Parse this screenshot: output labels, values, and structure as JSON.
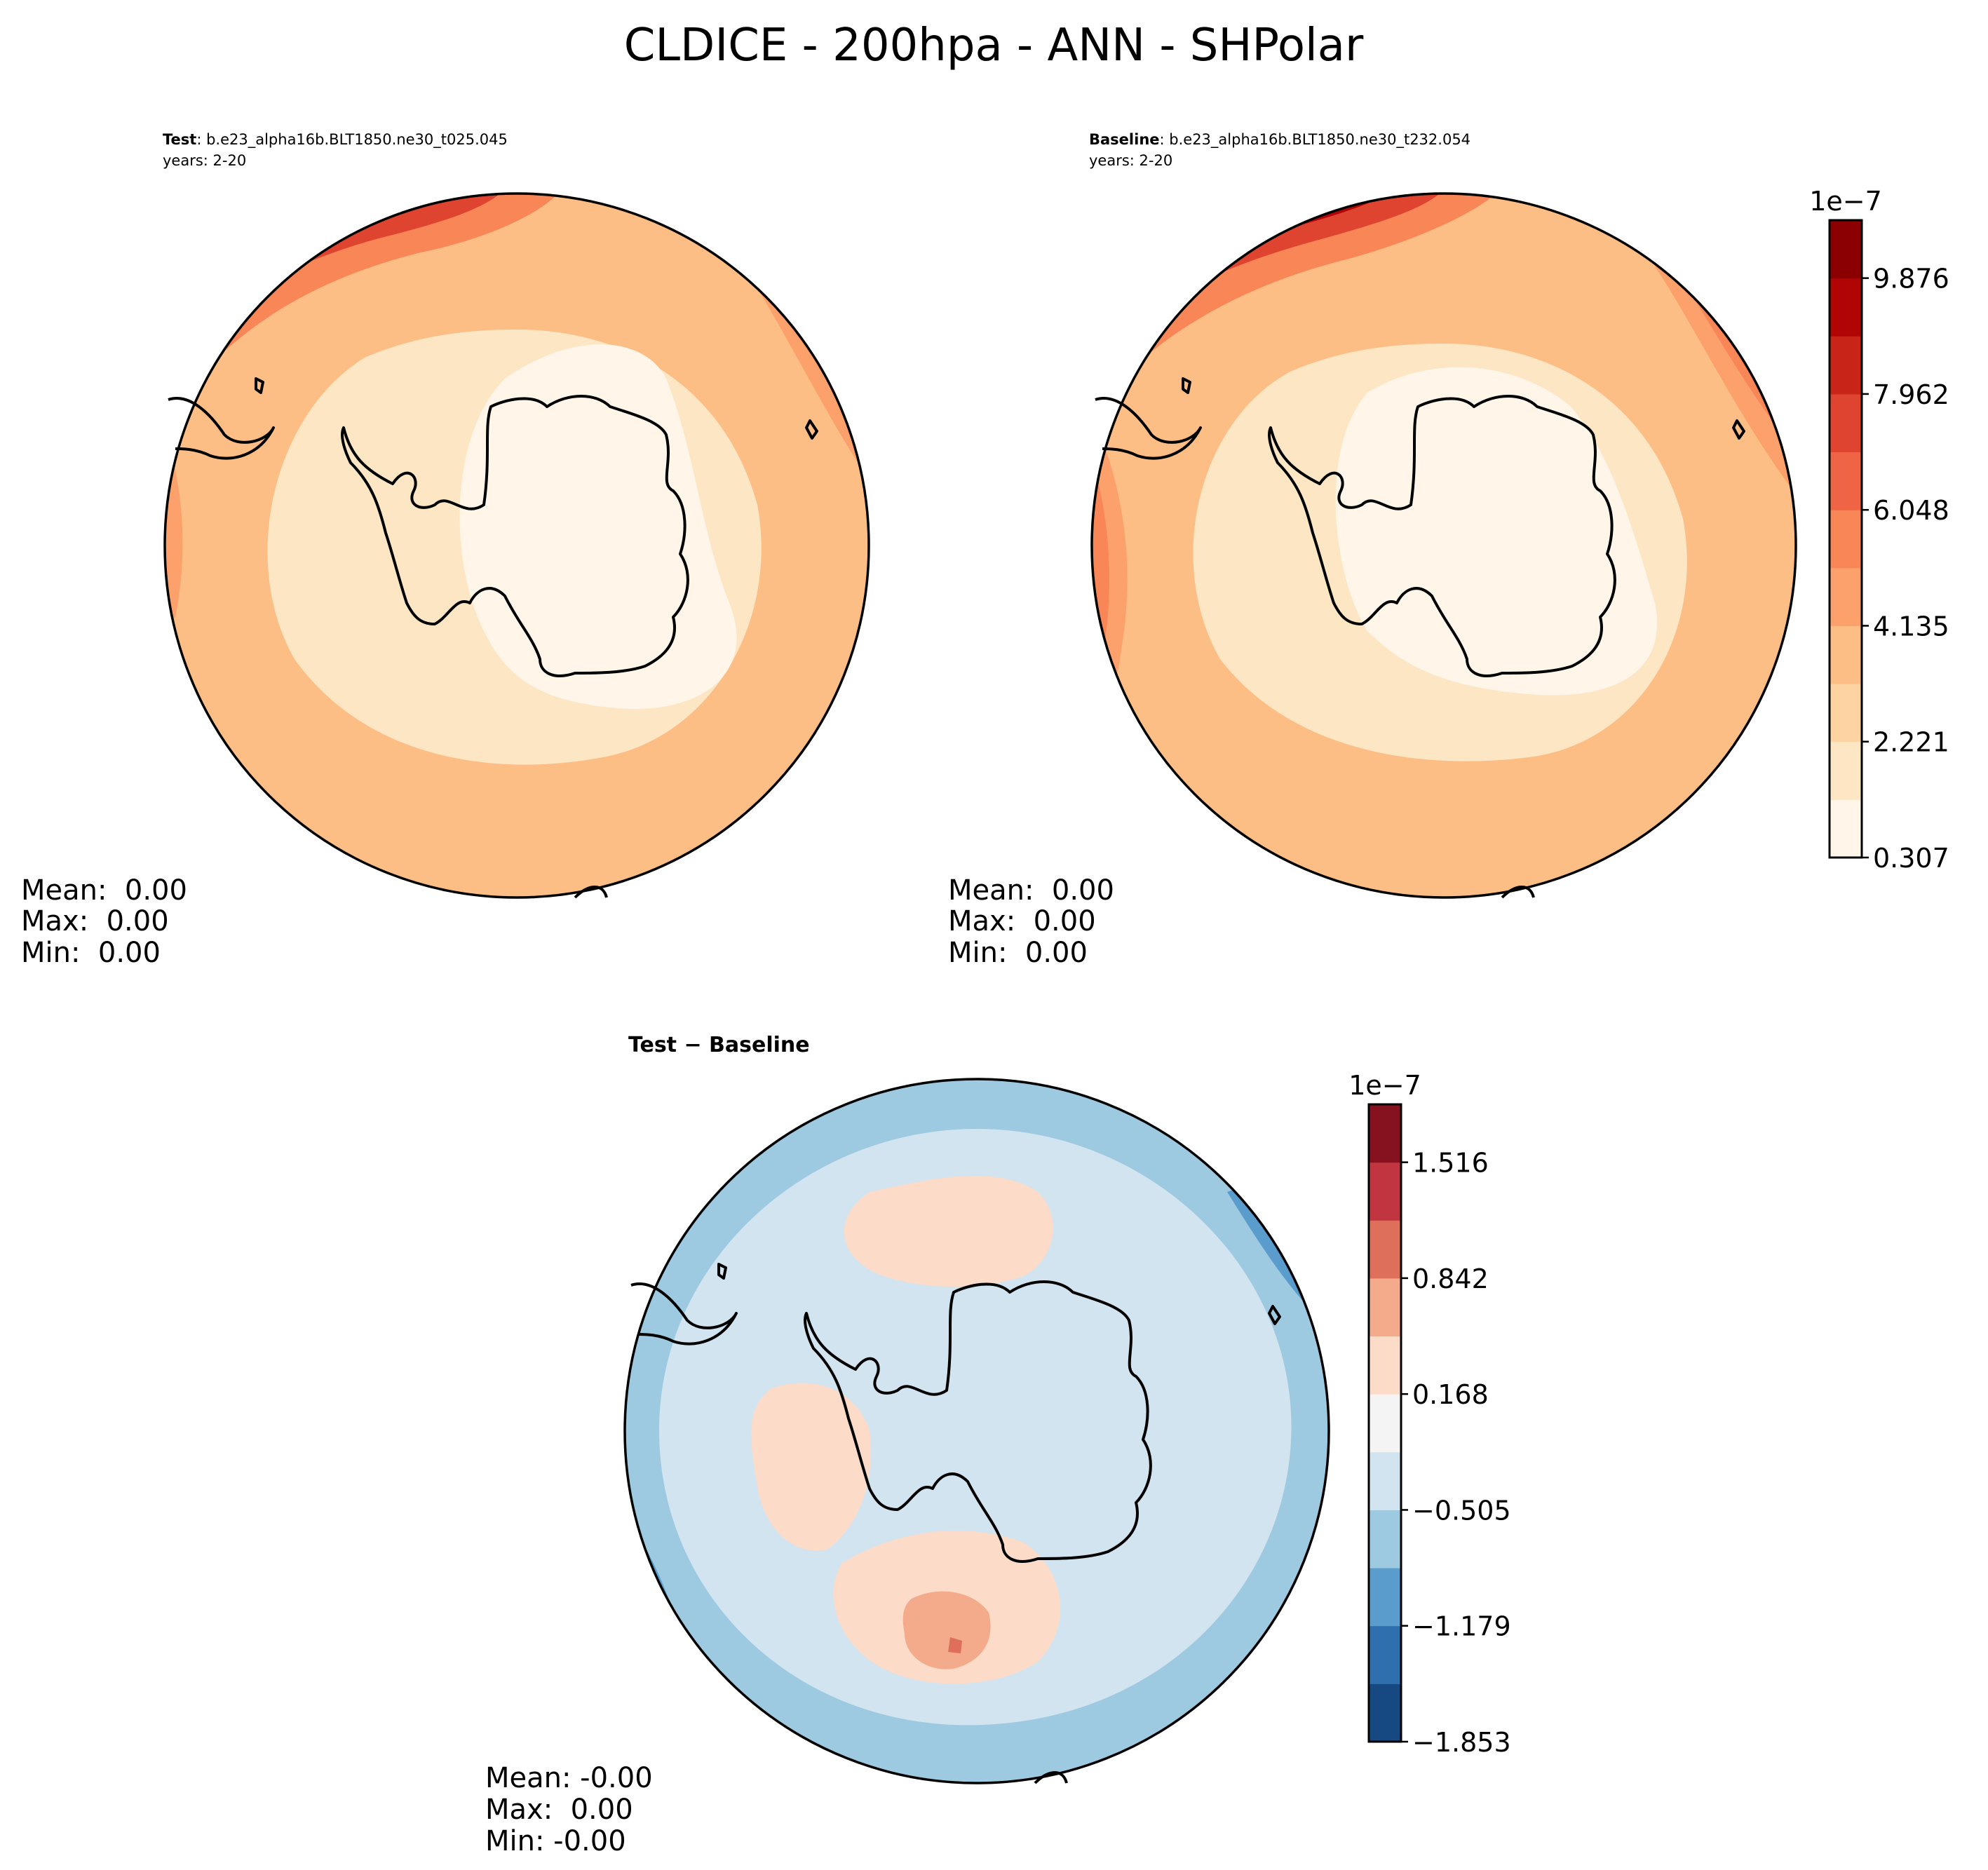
{
  "chart_data": {
    "type": "heatmap",
    "title": "CLDICE - 200hpa - ANN - SHPolar",
    "projection": "south-polar-stereographic",
    "panels": [
      {
        "id": "test",
        "label_bold": "Test",
        "label_rest": ": b.e23_alpha16b.BLT1850.ne30_t025.045",
        "years": "years: 2-20",
        "stats": {
          "mean": "Mean:  0.00",
          "max": "Max:  0.00",
          "min": "Min:  0.00"
        },
        "colormap": "OrRd-like",
        "field_levels": {
          "center": 0,
          "outer": 3,
          "pacific_sector": 4,
          "atlantic_sector": 9
        }
      },
      {
        "id": "baseline",
        "label_bold": "Baseline",
        "label_rest": ": b.e23_alpha16b.BLT1850.ne30_t232.054",
        "years": "years: 2-20",
        "stats": {
          "mean": "Mean:  0.00",
          "max": "Max:  0.00",
          "min": "Min:  0.00"
        },
        "colormap": "OrRd-like",
        "field_levels": {
          "center": 0,
          "outer": 3,
          "pacific_sector": 5,
          "atlantic_sector": 10
        }
      },
      {
        "id": "diff",
        "label": "Test − Baseline",
        "stats": {
          "mean": "Mean: -0.00",
          "max": "Max:  0.00",
          "min": "Min: -0.00"
        },
        "colormap": "RdBu_r",
        "field_levels": {
          "background": 5,
          "positive_patch": 6,
          "peak_patch": 7,
          "rim_negative": 3
        }
      }
    ],
    "colorbars": [
      {
        "for": [
          "test",
          "baseline"
        ],
        "offset_label": "1e−7",
        "ticks": [
          "0.307",
          "2.221",
          "4.135",
          "6.048",
          "7.962",
          "9.876"
        ],
        "tick_levels": [
          0,
          2,
          4,
          6,
          8,
          10
        ],
        "n_levels": 11,
        "colors": [
          "#fff5e8",
          "#fde6c4",
          "#fdd4a1",
          "#fdbe86",
          "#fca16c",
          "#f88657",
          "#ee6445",
          "#de4430",
          "#c82518",
          "#b10505",
          "#8b0000"
        ]
      },
      {
        "for": [
          "diff"
        ],
        "offset_label": "1e−7",
        "ticks": [
          "−1.853",
          "−1.179",
          "−0.505",
          "0.168",
          "0.842",
          "1.516"
        ],
        "tick_levels": [
          0,
          2,
          4,
          6,
          8,
          10
        ],
        "n_levels": 11,
        "colors": [
          "#164981",
          "#2f6fae",
          "#5a9ccc",
          "#9ecae1",
          "#d1e4f0",
          "#f4f4f4",
          "#fcdbc8",
          "#f4ab8b",
          "#de6f5a",
          "#c0353f",
          "#87121f"
        ]
      }
    ]
  }
}
